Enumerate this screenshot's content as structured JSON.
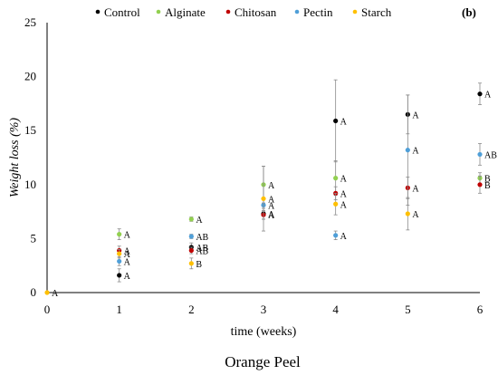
{
  "chart_data": {
    "type": "scatter",
    "panel_label": "(b)",
    "caption": "Orange Peel",
    "xlabel": "time (weeks)",
    "ylabel": "Weight loss (%)",
    "xlim": [
      0,
      6
    ],
    "ylim": [
      0,
      25
    ],
    "xticks": [
      "0",
      "1",
      "2",
      "3",
      "4",
      "5",
      "6"
    ],
    "yticks": [
      "0",
      "5",
      "10",
      "15",
      "20",
      "25"
    ],
    "grid": false,
    "legend_position": "top",
    "x": [
      0,
      1,
      2,
      3,
      4,
      5,
      6
    ],
    "series": [
      {
        "name": "Control",
        "color": "#000000",
        "values": [
          null,
          1.6,
          4.2,
          7.3,
          15.9,
          16.5,
          18.4
        ],
        "errors": [
          null,
          0.6,
          0.4,
          0.5,
          3.8,
          1.8,
          1.0
        ],
        "letters": [
          "",
          "A",
          "AB",
          "A",
          "A",
          "A",
          "A"
        ]
      },
      {
        "name": "Alginate",
        "color": "#92d050",
        "values": [
          null,
          5.4,
          6.8,
          10.0,
          10.6,
          null,
          10.6
        ],
        "errors": [
          null,
          0.5,
          0.2,
          1.7,
          1.6,
          null,
          0.5
        ],
        "letters": [
          "",
          "A",
          "A",
          "A",
          "A",
          "",
          "B"
        ]
      },
      {
        "name": "Chitosan",
        "color": "#c00000",
        "values": [
          null,
          3.9,
          3.9,
          7.2,
          9.2,
          9.7,
          10.0
        ],
        "errors": [
          null,
          0.4,
          0.3,
          0.4,
          0.6,
          1.0,
          0.8
        ],
        "letters": [
          "",
          "A",
          "AB",
          "A",
          "A",
          "A",
          "B"
        ]
      },
      {
        "name": "Pectin",
        "color": "#4f9fd8",
        "values": [
          null,
          2.9,
          5.2,
          8.1,
          5.3,
          13.2,
          12.8
        ],
        "errors": [
          null,
          0.4,
          0.2,
          0.6,
          0.4,
          5.1,
          1.0
        ],
        "letters": [
          "",
          "A",
          "AB",
          "A",
          "A",
          "A",
          "AB"
        ]
      },
      {
        "name": "Starch",
        "color": "#ffc000",
        "values": [
          0,
          3.6,
          2.7,
          8.7,
          8.2,
          7.3,
          null
        ],
        "errors": [
          null,
          0.4,
          0.5,
          3.0,
          1.0,
          1.5,
          null
        ],
        "letters": [
          "A",
          "A",
          "B",
          "A",
          "A",
          "A",
          ""
        ]
      }
    ]
  }
}
